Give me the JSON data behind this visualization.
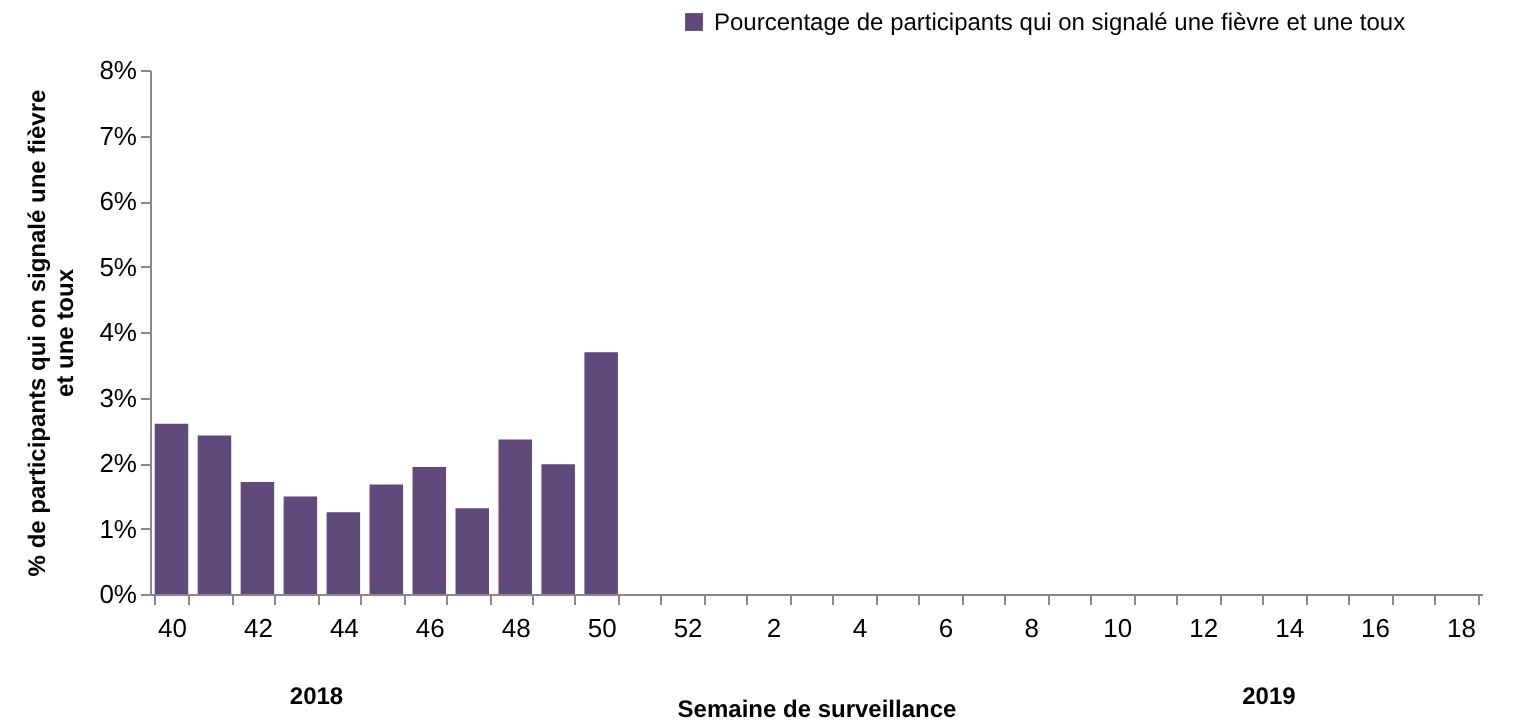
{
  "chart_data": {
    "type": "bar",
    "xlabel": "Semaine de surveillance",
    "ylabel": "% de participants qui on signalé une fièvre et une toux",
    "categories": [
      "40",
      null,
      "42",
      null,
      "44",
      null,
      "46",
      null,
      "48",
      null,
      "50",
      null,
      "52",
      null,
      "2",
      null,
      "4",
      null,
      "6",
      null,
      "8",
      null,
      "10",
      null,
      "12",
      null,
      "14",
      null,
      "16",
      null,
      "18"
    ],
    "series": [
      {
        "name": "Pourcentage de participants qui on signalé une fièvre et une toux",
        "color": "#604a7b",
        "values": [
          2.6,
          2.42,
          1.71,
          1.49,
          1.25,
          1.67,
          1.94,
          1.31,
          2.36,
          1.98,
          3.69,
          null,
          null,
          null,
          null,
          null,
          null,
          null,
          null,
          null,
          null,
          null,
          null,
          null,
          null,
          null,
          null,
          null,
          null,
          null,
          null
        ]
      }
    ],
    "ylim": [
      0,
      8
    ],
    "yticks": [
      {
        "value": 0,
        "label": "0%"
      },
      {
        "value": 1,
        "label": "1%"
      },
      {
        "value": 2,
        "label": "2%"
      },
      {
        "value": 3,
        "label": "3%"
      },
      {
        "value": 4,
        "label": "4%"
      },
      {
        "value": 5,
        "label": "5%"
      },
      {
        "value": 6,
        "label": "6%"
      },
      {
        "value": 7,
        "label": "7%"
      },
      {
        "value": 8,
        "label": "8%"
      }
    ],
    "annotations": [
      "2018",
      "2019"
    ],
    "grid": false,
    "legend": "top right"
  }
}
